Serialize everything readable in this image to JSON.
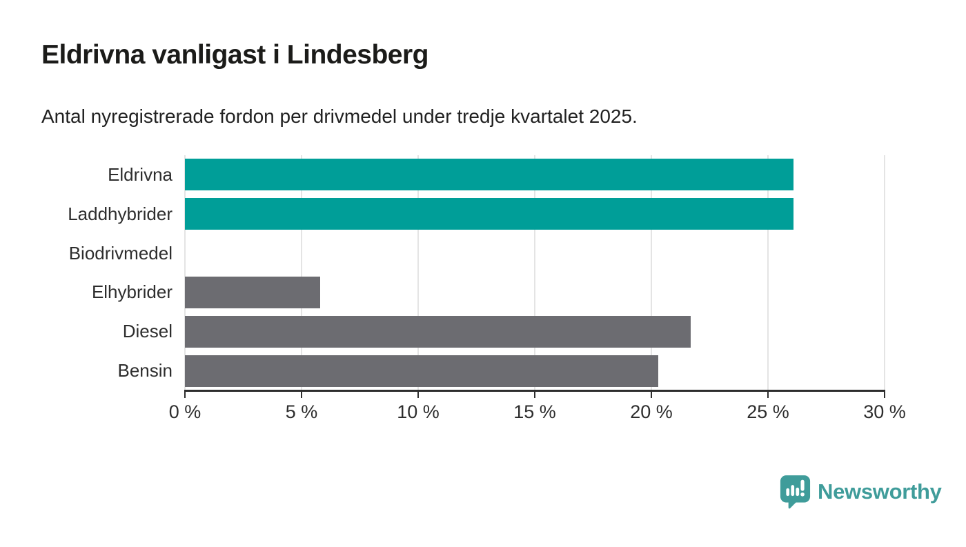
{
  "header": {
    "title": "Eldrivna vanligast i Lindesberg",
    "subtitle": "Antal nyregistrerade fordon per drivmedel under tredje kvartalet 2025."
  },
  "chart_data": {
    "type": "bar",
    "orientation": "horizontal",
    "title": "Eldrivna vanligast i Lindesberg",
    "subtitle": "Antal nyregistrerade fordon per drivmedel under tredje kvartalet 2025.",
    "categories": [
      "Eldrivna",
      "Laddhybrider",
      "Biodrivmedel",
      "Elhybrider",
      "Diesel",
      "Bensin"
    ],
    "values": [
      26.1,
      26.1,
      0,
      5.8,
      21.7,
      20.3
    ],
    "unit": "%",
    "bar_colors": [
      "#009e98",
      "#009e98",
      "#6c6c71",
      "#6c6c71",
      "#6c6c71",
      "#6c6c71"
    ],
    "xlabel": "",
    "ylabel": "",
    "xlim": [
      0,
      30
    ],
    "x_ticks": [
      0,
      5,
      10,
      15,
      20,
      25,
      30
    ],
    "x_tick_labels": [
      "0 %",
      "5 %",
      "10 %",
      "15 %",
      "20 %",
      "25 %",
      "30 %"
    ],
    "grid": "vertical-only",
    "legend": "none"
  },
  "colors": {
    "accent_teal": "#009e98",
    "neutral_gray": "#6c6c71",
    "gridline": "#e4e4e4",
    "axis": "#2d2d2d",
    "title_text": "#1b1b19",
    "brand_teal": "#3f9c9a"
  },
  "branding": {
    "logo_icon": "newsworthy-bar-chart-speech-bubble",
    "logo_text": "Newsworthy"
  }
}
